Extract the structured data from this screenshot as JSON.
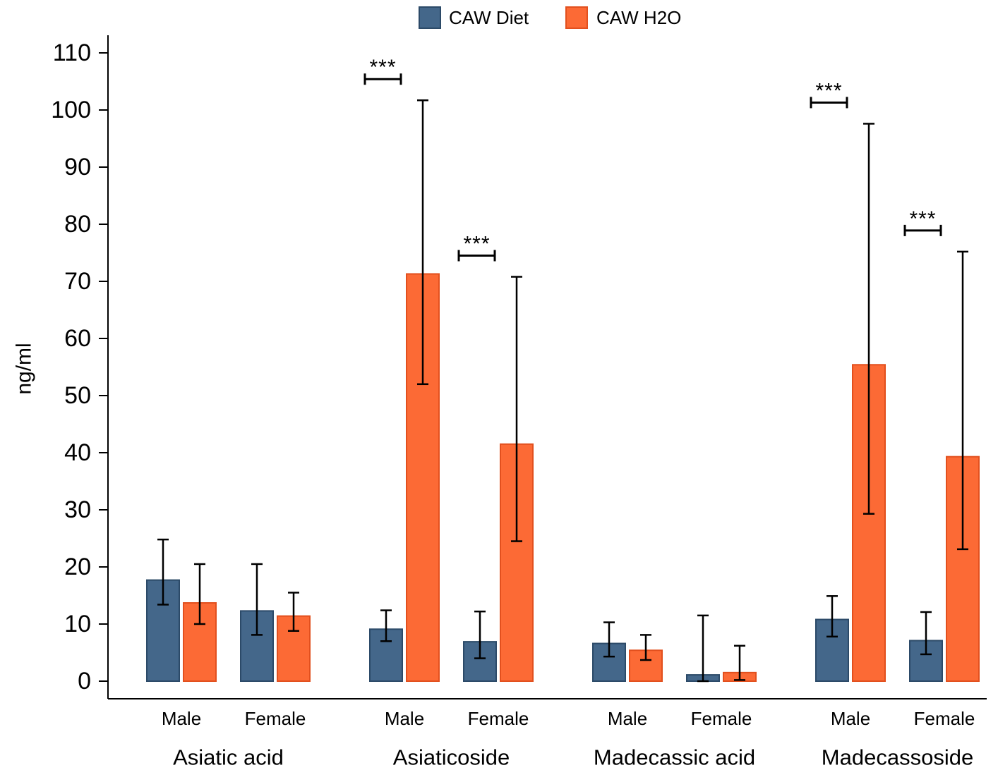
{
  "chart_data": {
    "type": "bar",
    "title": "",
    "xlabel": "",
    "ylabel": "ng/ml",
    "ylim": [
      0,
      110
    ],
    "yticks": [
      0,
      10,
      20,
      30,
      40,
      50,
      60,
      70,
      80,
      90,
      100,
      110
    ],
    "grid": false,
    "legend_position": "top-center",
    "series": [
      {
        "name": "CAW Diet",
        "color": "#44678a",
        "edge": "#2c4a68"
      },
      {
        "name": "CAW H2O",
        "color": "#fc6a35",
        "edge": "#e2501e"
      }
    ],
    "groups": [
      {
        "name": "Asiatic acid",
        "subgroups": [
          {
            "label": "Male",
            "bars": [
              {
                "value": 17.7,
                "low": 13.4,
                "high": 24.8
              },
              {
                "value": 13.7,
                "low": 10.0,
                "high": 20.5
              }
            ],
            "significance": ""
          },
          {
            "label": "Female",
            "bars": [
              {
                "value": 12.3,
                "low": 8.1,
                "high": 20.5
              },
              {
                "value": 11.4,
                "low": 8.8,
                "high": 15.5
              }
            ],
            "significance": ""
          }
        ]
      },
      {
        "name": "Asiaticoside",
        "subgroups": [
          {
            "label": "Male",
            "bars": [
              {
                "value": 9.1,
                "low": 7.0,
                "high": 12.4
              },
              {
                "value": 71.3,
                "low": 52.0,
                "high": 101.7
              }
            ],
            "significance": "***"
          },
          {
            "label": "Female",
            "bars": [
              {
                "value": 6.9,
                "low": 4.0,
                "high": 12.2
              },
              {
                "value": 41.5,
                "low": 24.5,
                "high": 70.8
              }
            ],
            "significance": "***"
          }
        ]
      },
      {
        "name": "Madecassic acid",
        "subgroups": [
          {
            "label": "Male",
            "bars": [
              {
                "value": 6.6,
                "low": 4.3,
                "high": 10.3
              },
              {
                "value": 5.4,
                "low": 3.7,
                "high": 8.1
              }
            ],
            "significance": ""
          },
          {
            "label": "Female",
            "bars": [
              {
                "value": 1.1,
                "low": 0.0,
                "high": 11.5
              },
              {
                "value": 1.5,
                "low": 0.2,
                "high": 6.2
              }
            ],
            "significance": ""
          }
        ]
      },
      {
        "name": "Madecassoside",
        "subgroups": [
          {
            "label": "Male",
            "bars": [
              {
                "value": 10.8,
                "low": 7.8,
                "high": 14.9
              },
              {
                "value": 55.4,
                "low": 29.3,
                "high": 97.6
              }
            ],
            "significance": "***"
          },
          {
            "label": "Female",
            "bars": [
              {
                "value": 7.1,
                "low": 4.7,
                "high": 12.1
              },
              {
                "value": 39.3,
                "low": 23.1,
                "high": 75.2
              }
            ],
            "significance": "***"
          }
        ]
      }
    ]
  }
}
